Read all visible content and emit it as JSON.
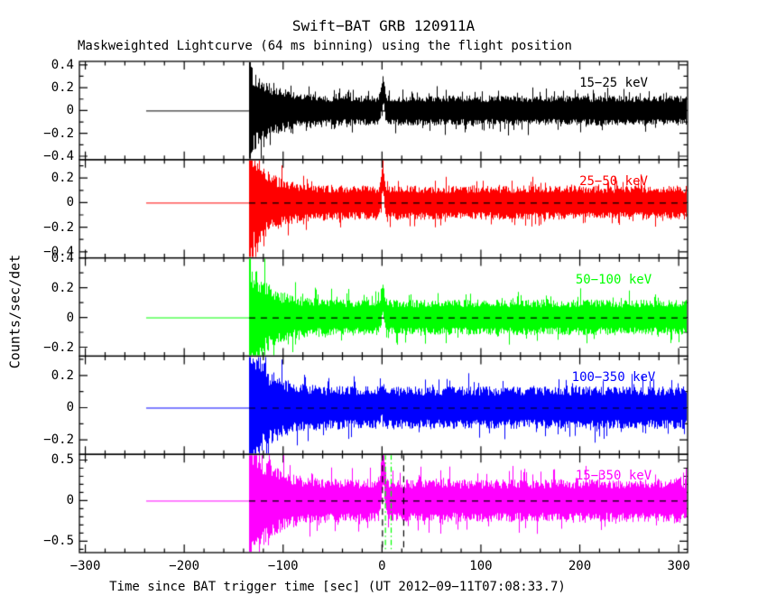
{
  "title": "Swift−BAT GRB 120911A",
  "subtitle": "Maskweighted Lightcurve (64 ms binning) using the flight position",
  "chart_data": {
    "type": "line",
    "title": "Swift−BAT GRB 120911A",
    "subtitle": "Maskweighted Lightcurve (64 ms binning) using the flight position",
    "xlabel": "Time since BAT trigger time [sec] (UT 2012−09−11T07:08:33.7)",
    "ylabel": "Counts/sec/det",
    "grid": false,
    "legend_position": "none",
    "xlim": [
      -306,
      309
    ],
    "x_minor_step": 20,
    "x_major_step": 100,
    "xticks": [
      {
        "v": -300,
        "s": "−300"
      },
      {
        "v": -200,
        "s": "−200"
      },
      {
        "v": -100,
        "s": "−100"
      },
      {
        "v": 0,
        "s": "0"
      },
      {
        "v": 100,
        "s": "100"
      },
      {
        "v": 200,
        "s": "200"
      },
      {
        "v": 300,
        "s": "300"
      }
    ],
    "data_start_time": -238.5,
    "noise_start_time": -134.5,
    "data_end_time": 309,
    "burst_peak_time": 0.5,
    "zero_line": {
      "color": "#000000",
      "style": "dashed"
    },
    "panels": [
      {
        "label": "15−25 keV",
        "color": "#000000",
        "ylim": [
          -0.43,
          0.43
        ],
        "y_major_step": 0.2,
        "y_minor_step": 0.1,
        "yticks": [
          {
            "v": 0.4,
            "s": "0.4"
          },
          {
            "v": 0.2,
            "s": "0.2"
          },
          {
            "v": 0,
            "s": "0"
          },
          {
            "v": -0.2,
            "s": "−0.2"
          },
          {
            "v": -0.4,
            "s": "−0.4"
          }
        ],
        "noise_sigma": 0.055,
        "burst_amplitude": 0.17,
        "seed": 101
      },
      {
        "label": "25−50 keV",
        "color": "#ff0000",
        "ylim": [
          -0.45,
          0.35
        ],
        "y_major_step": 0.2,
        "y_minor_step": 0.1,
        "yticks": [
          {
            "v": 0.2,
            "s": "0.2"
          },
          {
            "v": 0,
            "s": "0"
          },
          {
            "v": -0.2,
            "s": "−0.2"
          },
          {
            "v": -0.4,
            "s": "−0.4"
          }
        ],
        "noise_sigma": 0.058,
        "burst_amplitude": 0.18,
        "seed": 202
      },
      {
        "label": "50−100 keV",
        "color": "#00ff00",
        "ylim": [
          -0.26,
          0.4
        ],
        "y_major_step": 0.2,
        "y_minor_step": 0.1,
        "yticks": [
          {
            "v": 0.4,
            "s": "0.4"
          },
          {
            "v": 0.2,
            "s": "0.2"
          },
          {
            "v": 0,
            "s": "0"
          },
          {
            "v": -0.2,
            "s": "−0.2"
          }
        ],
        "noise_sigma": 0.05,
        "burst_amplitude": 0.11,
        "seed": 303
      },
      {
        "label": "100−350 keV",
        "color": "#0000ff",
        "ylim": [
          -0.29,
          0.32
        ],
        "y_major_step": 0.2,
        "y_minor_step": 0.1,
        "yticks": [
          {
            "v": 0.2,
            "s": "0.2"
          },
          {
            "v": 0,
            "s": "0"
          },
          {
            "v": -0.2,
            "s": "−0.2"
          }
        ],
        "noise_sigma": 0.055,
        "burst_amplitude": 0.05,
        "seed": 404
      },
      {
        "label": "15−350 keV",
        "color": "#ff00ff",
        "ylim": [
          -0.64,
          0.57
        ],
        "y_major_step": 0.5,
        "y_minor_step": 0.1,
        "yticks": [
          {
            "v": 0.5,
            "s": "0.5"
          },
          {
            "v": 0,
            "s": "0"
          },
          {
            "v": -0.5,
            "s": "−0.5"
          }
        ],
        "noise_sigma": 0.11,
        "burst_amplitude": 0.42,
        "seed": 505,
        "vlines": [
          {
            "t": 0.0,
            "color": "#000000",
            "style": "dashed"
          },
          {
            "t": 21.5,
            "color": "#000000",
            "style": "dashed"
          },
          {
            "t": 3.0,
            "color": "#00ff00",
            "style": "dashdot"
          },
          {
            "t": 8.8,
            "color": "#00ff00",
            "style": "dashdot"
          }
        ]
      }
    ]
  }
}
